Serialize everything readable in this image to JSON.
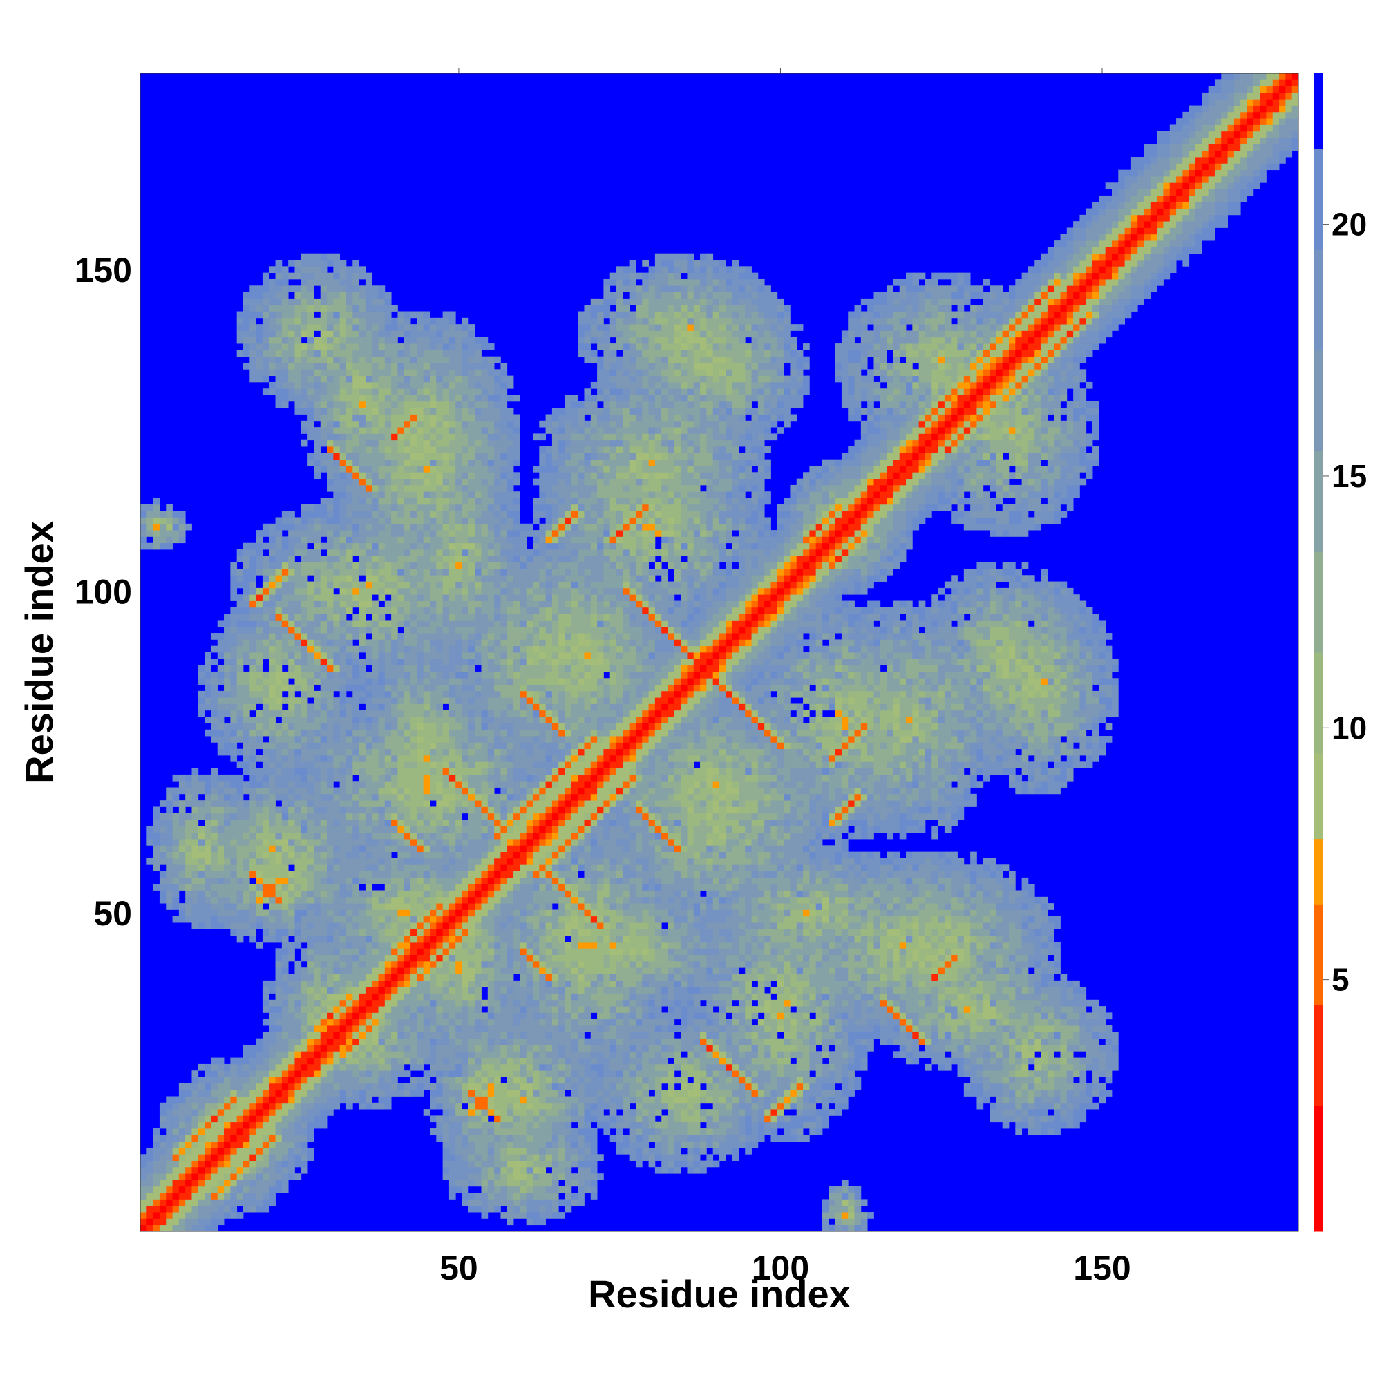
{
  "chart_data": {
    "type": "heatmap",
    "title": "",
    "xlabel": "Residue index",
    "ylabel": "Residue index",
    "n_residues": 180,
    "xlim": [
      1,
      180
    ],
    "ylim": [
      1,
      180
    ],
    "x_ticks": [
      50,
      100,
      150
    ],
    "y_ticks": [
      50,
      100,
      150
    ],
    "colorbar": {
      "ticks": [
        5,
        10,
        15,
        20
      ],
      "range": [
        0,
        23
      ],
      "orientation": "vertical",
      "placement": "right"
    },
    "colormap": [
      {
        "max": 2.5,
        "color": "#ff0000"
      },
      {
        "max": 4.5,
        "color": "#ff2800"
      },
      {
        "max": 6.5,
        "color": "#ff6a00"
      },
      {
        "max": 7.8,
        "color": "#ff9a00"
      },
      {
        "max": 9.5,
        "color": "#a4bd78"
      },
      {
        "max": 11.5,
        "color": "#9bb881"
      },
      {
        "max": 13.5,
        "color": "#92ae92"
      },
      {
        "max": 15.5,
        "color": "#85a2a6"
      },
      {
        "max": 17.5,
        "color": "#7c98b6"
      },
      {
        "max": 19.5,
        "color": "#7492c2"
      },
      {
        "max": 21.5,
        "color": "#6b8ccc"
      },
      {
        "max": 999,
        "color": "#0000ff"
      }
    ],
    "contact_segments": [
      {
        "type": "parallel",
        "a0": 6,
        "b0": 12,
        "len": 10
      },
      {
        "type": "parallel",
        "a0": 28,
        "b0": 32,
        "len": 6
      },
      {
        "type": "parallel",
        "a0": 40,
        "b0": 44,
        "len": 8
      },
      {
        "type": "parallel",
        "a0": 56,
        "b0": 62,
        "len": 12
      },
      {
        "type": "parallel",
        "a0": 62,
        "b0": 68,
        "len": 10
      },
      {
        "type": "parallel",
        "a0": 122,
        "b0": 126,
        "len": 8
      },
      {
        "type": "parallel",
        "a0": 130,
        "b0": 135,
        "len": 14
      },
      {
        "type": "parallel",
        "a0": 104,
        "b0": 108,
        "len": 6
      },
      {
        "type": "anti",
        "sum": 176,
        "from": 76,
        "to": 88
      },
      {
        "type": "anti",
        "sum": 176,
        "from": 88,
        "to": 100
      },
      {
        "type": "anti",
        "sum": 118,
        "from": 22,
        "to": 30
      },
      {
        "type": "anti",
        "sum": 104,
        "from": 40,
        "to": 44
      },
      {
        "type": "anti",
        "sum": 120,
        "from": 48,
        "to": 56
      },
      {
        "type": "anti",
        "sum": 144,
        "from": 78,
        "to": 84
      },
      {
        "type": "anti",
        "sum": 152,
        "from": 30,
        "to": 36
      },
      {
        "type": "anti",
        "sum": 74,
        "from": 18,
        "to": 22
      },
      {
        "type": "parallel",
        "a0": 18,
        "b0": 98,
        "len": 6
      },
      {
        "type": "parallel",
        "a0": 19,
        "b0": 52,
        "len": 4
      },
      {
        "type": "parallel",
        "a0": 40,
        "b0": 124,
        "len": 4
      },
      {
        "type": "parallel",
        "a0": 64,
        "b0": 108,
        "len": 5
      },
      {
        "type": "parallel",
        "a0": 108,
        "b0": 74,
        "len": 6
      }
    ],
    "blobs": [
      {
        "cx": 28,
        "cy": 140,
        "rx": 12,
        "ry": 12
      },
      {
        "cx": 45,
        "cy": 125,
        "rx": 14,
        "ry": 18
      },
      {
        "cx": 35,
        "cy": 100,
        "rx": 20,
        "ry": 14
      },
      {
        "cx": 45,
        "cy": 70,
        "rx": 22,
        "ry": 16
      },
      {
        "cx": 22,
        "cy": 60,
        "rx": 14,
        "ry": 12
      },
      {
        "cx": 42,
        "cy": 50,
        "rx": 16,
        "ry": 12
      },
      {
        "cx": 35,
        "cy": 30,
        "rx": 14,
        "ry": 10
      },
      {
        "cx": 15,
        "cy": 15,
        "rx": 12,
        "ry": 10
      },
      {
        "cx": 55,
        "cy": 22,
        "rx": 10,
        "ry": 12
      },
      {
        "cx": 60,
        "cy": 10,
        "rx": 12,
        "ry": 8
      },
      {
        "cx": 85,
        "cy": 22,
        "rx": 14,
        "ry": 12
      },
      {
        "cx": 85,
        "cy": 140,
        "rx": 16,
        "ry": 12
      },
      {
        "cx": 80,
        "cy": 110,
        "rx": 18,
        "ry": 16
      },
      {
        "cx": 65,
        "cy": 90,
        "rx": 18,
        "ry": 20
      },
      {
        "cx": 90,
        "cy": 70,
        "rx": 16,
        "ry": 14
      },
      {
        "cx": 105,
        "cy": 50,
        "rx": 16,
        "ry": 10
      },
      {
        "cx": 75,
        "cy": 45,
        "rx": 20,
        "ry": 10
      },
      {
        "cx": 120,
        "cy": 45,
        "rx": 22,
        "ry": 14
      },
      {
        "cx": 130,
        "cy": 35,
        "rx": 16,
        "ry": 10
      },
      {
        "cx": 135,
        "cy": 90,
        "rx": 14,
        "ry": 14
      },
      {
        "cx": 125,
        "cy": 135,
        "rx": 16,
        "ry": 14
      },
      {
        "cx": 110,
        "cy": 110,
        "rx": 10,
        "ry": 10
      },
      {
        "cx": 120,
        "cy": 80,
        "rx": 14,
        "ry": 18
      },
      {
        "cx": 110,
        "cy": 3,
        "rx": 4,
        "ry": 3
      },
      {
        "cx": 5,
        "cy": 110,
        "rx": 3,
        "ry": 3
      }
    ]
  }
}
